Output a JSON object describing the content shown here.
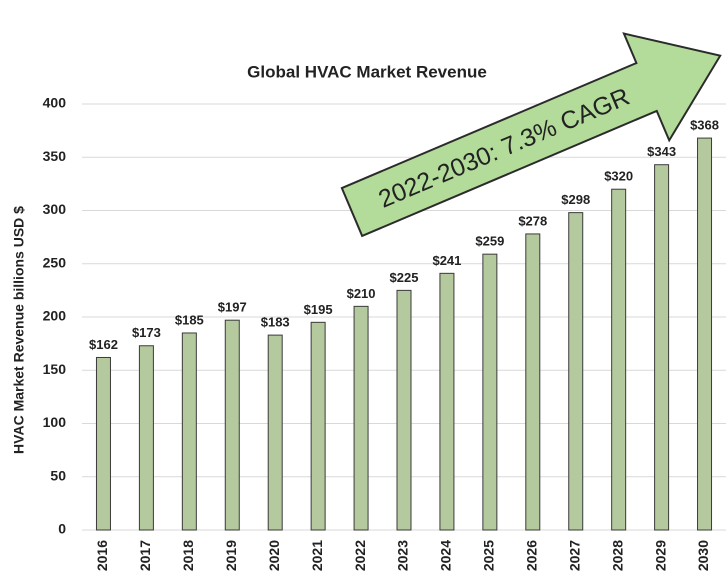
{
  "chart_data": {
    "type": "bar",
    "title": "Global HVAC Market Revenue",
    "y_label": "HVAC Market Revenue billions USD $",
    "annotation": "2022-2030:  7.3% CAGR",
    "categories": [
      "2016",
      "2017",
      "2018",
      "2019",
      "2020",
      "2021",
      "2022",
      "2023",
      "2024",
      "2025",
      "2026",
      "2027",
      "2028",
      "2029",
      "2030"
    ],
    "values": [
      162,
      173,
      185,
      197,
      183,
      195,
      210,
      225,
      241,
      259,
      278,
      298,
      320,
      343,
      368
    ],
    "value_labels": [
      "$162",
      "$173",
      "$185",
      "$197",
      "$183",
      "$195",
      "$210",
      "$225",
      "$241",
      "$259",
      "$278",
      "$298",
      "$320",
      "$343",
      "$368"
    ],
    "color": "#b5c99f",
    "ylim": [
      0,
      400
    ],
    "yticks": [
      0,
      50,
      100,
      150,
      200,
      250,
      300,
      350,
      400
    ],
    "grid": true
  }
}
